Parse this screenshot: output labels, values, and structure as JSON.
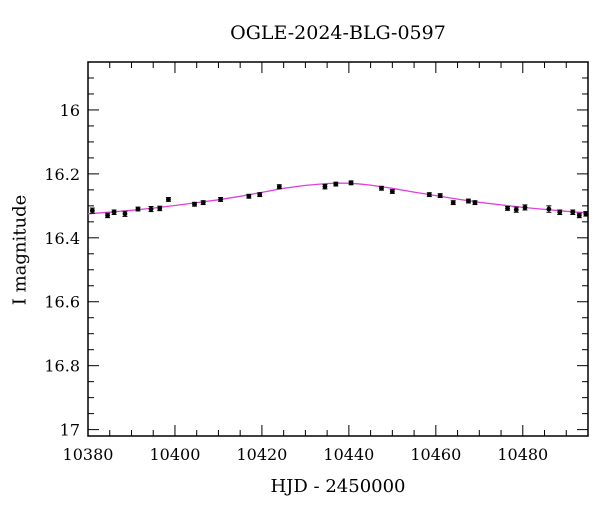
{
  "chart_data": {
    "type": "scatter",
    "title": "OGLE-2024-BLG-0597",
    "xlabel": "HJD - 2450000",
    "ylabel": "I magnitude",
    "xlim": [
      10380,
      10495
    ],
    "ylim": [
      17.02,
      15.85
    ],
    "y_inverted": true,
    "x_ticks": [
      10380,
      10400,
      10420,
      10440,
      10460,
      10480
    ],
    "y_ticks": [
      16,
      16.2,
      16.4,
      16.6,
      16.8,
      17
    ],
    "x_tick_labels": [
      "10380",
      "10400",
      "10420",
      "10440",
      "10460",
      "10480"
    ],
    "y_tick_labels": [
      "16",
      "16.2",
      "16.4",
      "16.6",
      "16.8",
      "17"
    ],
    "grid": false,
    "point_color": "#000000",
    "model_color": "#e040e0",
    "series": [
      {
        "type": "scatter",
        "x": [
          10381.0,
          10384.5,
          10386.0,
          10388.5,
          10391.5,
          10394.5,
          10396.5,
          10398.5,
          10404.5,
          10406.5,
          10410.5,
          10417.0,
          10419.5,
          10424.0,
          10434.5,
          10437.0,
          10440.5,
          10447.5,
          10450.0,
          10458.5,
          10461.0,
          10464.0,
          10467.5,
          10469.0,
          10476.5,
          10478.5,
          10480.5,
          10486.0,
          10488.5,
          10491.5,
          10493.0,
          10494.5
        ],
        "y": [
          16.315,
          16.33,
          16.32,
          16.325,
          16.31,
          16.31,
          16.308,
          16.28,
          16.295,
          16.29,
          16.28,
          16.27,
          16.265,
          16.24,
          16.24,
          16.232,
          16.228,
          16.245,
          16.255,
          16.265,
          16.268,
          16.29,
          16.285,
          16.29,
          16.308,
          16.312,
          16.305,
          16.31,
          16.32,
          16.32,
          16.33,
          16.325
        ],
        "yerr": [
          0.008,
          0.007,
          0.007,
          0.008,
          0.006,
          0.008,
          0.007,
          0.006,
          0.006,
          0.006,
          0.006,
          0.006,
          0.006,
          0.006,
          0.007,
          0.006,
          0.006,
          0.006,
          0.006,
          0.006,
          0.006,
          0.006,
          0.006,
          0.006,
          0.006,
          0.008,
          0.008,
          0.01,
          0.007,
          0.007,
          0.007,
          0.007
        ]
      },
      {
        "type": "line",
        "x": [
          10380,
          10385,
          10390,
          10395,
          10400,
          10405,
          10410,
          10415,
          10420,
          10425,
          10430,
          10435,
          10438,
          10440,
          10442,
          10445,
          10450,
          10455,
          10460,
          10465,
          10470,
          10475,
          10480,
          10485,
          10490,
          10495
        ],
        "y": [
          16.325,
          16.32,
          16.314,
          16.307,
          16.299,
          16.29,
          16.281,
          16.27,
          16.258,
          16.245,
          16.236,
          16.23,
          16.229,
          16.229,
          16.231,
          16.235,
          16.245,
          16.257,
          16.268,
          16.279,
          16.289,
          16.297,
          16.305,
          16.311,
          16.317,
          16.322
        ]
      }
    ]
  }
}
